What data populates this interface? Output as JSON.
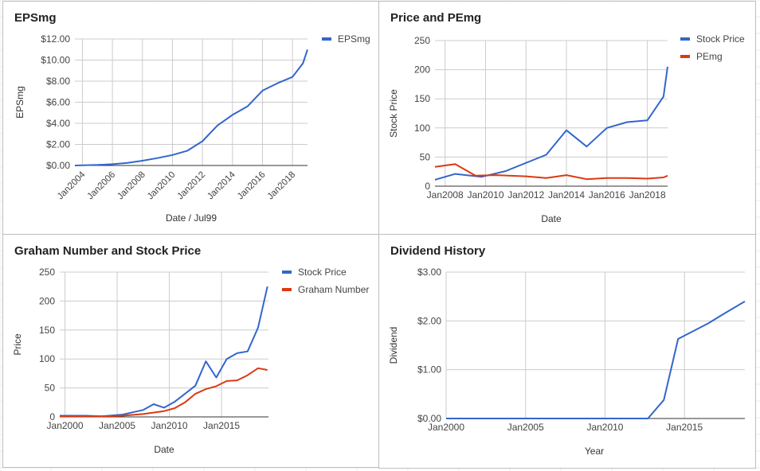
{
  "chart_data": [
    {
      "type": "line",
      "title": "EPSmg",
      "xlabel": "Date / Jul99",
      "ylabel": "EPSmg",
      "x_ticks": [
        "Jan2004",
        "Jan2006",
        "Jan2008",
        "Jan2010",
        "Jan2012",
        "Jan2014",
        "Jan2016",
        "Jan2018"
      ],
      "y_ticks": [
        "$0.00",
        "$2.00",
        "$4.00",
        "$6.00",
        "$8.00",
        "$10.00",
        "$12.00"
      ],
      "ylim": [
        0,
        12
      ],
      "xlim": [
        2003.5,
        2019
      ],
      "legend_position": "right",
      "grid": true,
      "series": [
        {
          "name": "EPSmg",
          "color": "#3366cc",
          "points": [
            [
              2003.5,
              0.0
            ],
            [
              2005.0,
              0.05
            ],
            [
              2006.0,
              0.12
            ],
            [
              2007.0,
              0.25
            ],
            [
              2008.0,
              0.45
            ],
            [
              2009.0,
              0.7
            ],
            [
              2010.0,
              1.0
            ],
            [
              2011.0,
              1.4
            ],
            [
              2012.0,
              2.3
            ],
            [
              2013.0,
              3.8
            ],
            [
              2014.0,
              4.8
            ],
            [
              2015.0,
              5.6
            ],
            [
              2016.0,
              7.1
            ],
            [
              2017.0,
              7.8
            ],
            [
              2018.0,
              8.4
            ],
            [
              2018.7,
              9.7
            ],
            [
              2019.0,
              11.0
            ]
          ]
        }
      ]
    },
    {
      "type": "line",
      "title": "Price and PEmg",
      "xlabel": "Date",
      "ylabel": "Stock Price",
      "x_ticks": [
        "Jan2008",
        "Jan2010",
        "Jan2012",
        "Jan2014",
        "Jan2016",
        "Jan2018"
      ],
      "y_ticks": [
        "0",
        "50",
        "100",
        "150",
        "200",
        "250"
      ],
      "ylim": [
        0,
        250
      ],
      "xlim": [
        2007.5,
        2019
      ],
      "legend_position": "right",
      "grid": true,
      "series": [
        {
          "name": "Stock Price",
          "color": "#3366cc",
          "points": [
            [
              2007.5,
              11
            ],
            [
              2008.5,
              21
            ],
            [
              2009.8,
              16
            ],
            [
              2011.0,
              26
            ],
            [
              2013.0,
              54
            ],
            [
              2014.0,
              96
            ],
            [
              2015.0,
              68
            ],
            [
              2016.0,
              100
            ],
            [
              2017.0,
              110
            ],
            [
              2018.0,
              113
            ],
            [
              2018.8,
              154
            ],
            [
              2019.0,
              205
            ]
          ]
        },
        {
          "name": "PEmg",
          "color": "#dc3912",
          "points": [
            [
              2007.5,
              33
            ],
            [
              2008.5,
              38
            ],
            [
              2009.5,
              18
            ],
            [
              2010.5,
              19
            ],
            [
              2012.0,
              17
            ],
            [
              2013.0,
              14
            ],
            [
              2014.0,
              19
            ],
            [
              2015.0,
              12
            ],
            [
              2016.0,
              14
            ],
            [
              2017.0,
              14
            ],
            [
              2018.0,
              13
            ],
            [
              2018.8,
              15
            ],
            [
              2019.0,
              18
            ]
          ]
        }
      ]
    },
    {
      "type": "line",
      "title": "Graham Number and Stock Price",
      "xlabel": "Date",
      "ylabel": "Price",
      "x_ticks": [
        "Jan2000",
        "Jan2005",
        "Jan2010",
        "Jan2015"
      ],
      "y_ticks": [
        "0",
        "50",
        "100",
        "150",
        "200",
        "250"
      ],
      "ylim": [
        0,
        250
      ],
      "xlim": [
        1999.5,
        2019.5
      ],
      "legend_position": "right",
      "grid": true,
      "series": [
        {
          "name": "Stock Price",
          "color": "#3366cc",
          "points": [
            [
              1999.5,
              2
            ],
            [
              2002.0,
              2
            ],
            [
              2003.5,
              1
            ],
            [
              2005.5,
              4
            ],
            [
              2006.5,
              8
            ],
            [
              2007.5,
              12
            ],
            [
              2008.5,
              22
            ],
            [
              2009.5,
              16
            ],
            [
              2010.5,
              26
            ],
            [
              2011.5,
              40
            ],
            [
              2012.5,
              54
            ],
            [
              2013.5,
              96
            ],
            [
              2014.5,
              68
            ],
            [
              2015.5,
              100
            ],
            [
              2016.5,
              110
            ],
            [
              2017.5,
              113
            ],
            [
              2018.5,
              154
            ],
            [
              2019.4,
              225
            ]
          ]
        },
        {
          "name": "Graham Number",
          "color": "#dc3912",
          "points": [
            [
              1999.5,
              1
            ],
            [
              2003.5,
              1
            ],
            [
              2005.5,
              2
            ],
            [
              2007.5,
              5
            ],
            [
              2009.5,
              10
            ],
            [
              2010.5,
              15
            ],
            [
              2011.5,
              25
            ],
            [
              2012.5,
              40
            ],
            [
              2013.5,
              48
            ],
            [
              2014.5,
              53
            ],
            [
              2015.5,
              62
            ],
            [
              2016.5,
              63
            ],
            [
              2017.5,
              72
            ],
            [
              2018.5,
              84
            ],
            [
              2019.4,
              81
            ]
          ]
        }
      ]
    },
    {
      "type": "line",
      "title": "Dividend History",
      "xlabel": "Year",
      "ylabel": "Dividend",
      "x_ticks": [
        "Jan2000",
        "Jan2005",
        "Jan2010",
        "Jan2015"
      ],
      "y_ticks": [
        "$0.00",
        "$1.00",
        "$2.00",
        "$3.00"
      ],
      "ylim": [
        0,
        3
      ],
      "xlim": [
        2000,
        2018.8
      ],
      "grid": true,
      "series": [
        {
          "name": "Dividend",
          "color": "#3366cc",
          "points": [
            [
              2000.0,
              0.0
            ],
            [
              2012.7,
              0.0
            ],
            [
              2013.7,
              0.38
            ],
            [
              2014.6,
              1.63
            ],
            [
              2016.5,
              1.95
            ],
            [
              2017.5,
              2.15
            ],
            [
              2018.8,
              2.4
            ]
          ]
        }
      ]
    }
  ]
}
